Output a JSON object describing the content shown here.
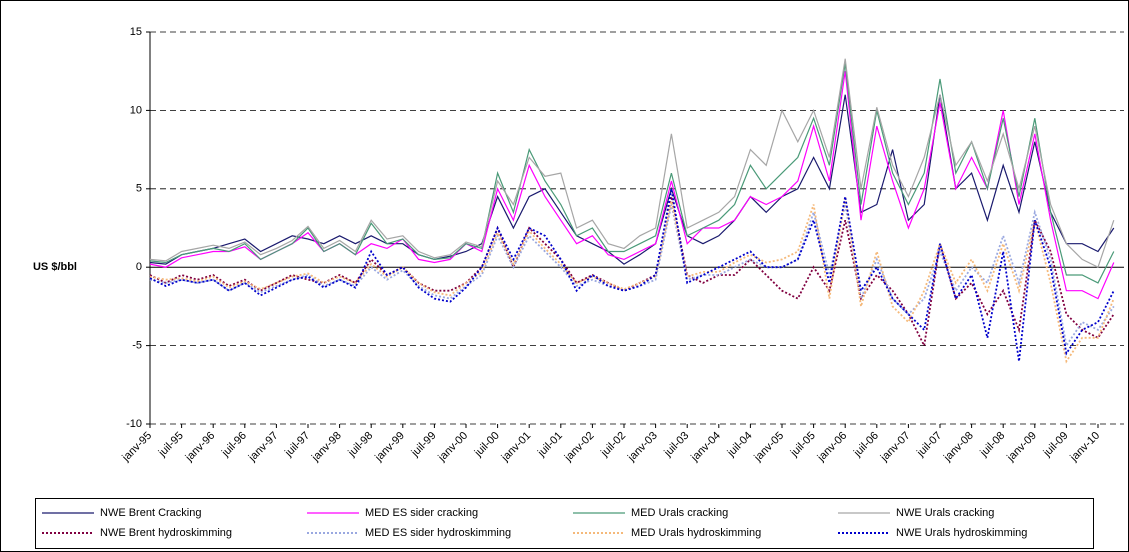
{
  "chart_data": {
    "type": "line",
    "y_label": "US $/bbl",
    "ylim": [
      -10,
      15
    ],
    "yticks": [
      -10,
      -5,
      0,
      5,
      10,
      15
    ],
    "grid": true,
    "legend": "bottom",
    "categories": [
      "janv-95",
      null,
      "juil-95",
      null,
      "janv-96",
      null,
      "juil-96",
      null,
      "janv-97",
      null,
      "juil-97",
      null,
      "janv-98",
      null,
      "juil-98",
      null,
      "janv-99",
      null,
      "juil-99",
      null,
      "janv-00",
      null,
      "juil-00",
      null,
      "janv-01",
      null,
      "juil-01",
      null,
      "janv-02",
      null,
      "juil-02",
      null,
      "janv-03",
      null,
      "juil-03",
      null,
      "janv-04",
      null,
      "juil-04",
      null,
      "janv-05",
      null,
      "juil-05",
      null,
      "janv-06",
      null,
      "juil-06",
      null,
      "janv-07",
      null,
      "juil-07",
      null,
      "janv-08",
      null,
      "juil-08",
      null,
      "janv-09",
      null,
      "juil-09",
      null,
      "janv-10",
      null
    ],
    "series": [
      {
        "name": "NWE Brent Cracking",
        "color": "#1a1a6e",
        "style": "solid",
        "values": [
          0.3,
          0.2,
          0.8,
          1.0,
          1.2,
          1.5,
          1.8,
          1.0,
          1.5,
          2.0,
          1.8,
          1.5,
          2.0,
          1.5,
          2.0,
          1.5,
          1.5,
          0.8,
          0.5,
          0.7,
          1.0,
          1.5,
          4.5,
          2.5,
          4.5,
          5.0,
          3.5,
          2.0,
          1.5,
          1.0,
          0.2,
          0.8,
          1.5,
          5.0,
          2.0,
          1.5,
          2.0,
          3.0,
          4.5,
          3.5,
          4.5,
          5.0,
          7.0,
          5.0,
          11.0,
          3.5,
          4.0,
          7.5,
          3.0,
          4.0,
          11.0,
          5.0,
          6.0,
          3.0,
          6.5,
          3.5,
          8.0,
          3.5,
          1.5,
          1.5,
          1.0,
          2.5
        ]
      },
      {
        "name": "MED ES sider cracking",
        "color": "#ff00ff",
        "style": "solid",
        "values": [
          0.2,
          0.0,
          0.6,
          0.8,
          1.0,
          1.0,
          1.3,
          0.5,
          1.0,
          1.5,
          2.2,
          1.0,
          1.5,
          0.8,
          1.5,
          1.2,
          1.8,
          0.5,
          0.3,
          0.5,
          1.5,
          1.0,
          5.0,
          3.0,
          6.5,
          4.5,
          3.0,
          1.5,
          2.0,
          0.8,
          0.5,
          1.0,
          1.5,
          5.5,
          1.5,
          2.5,
          2.5,
          3.0,
          4.5,
          4.0,
          4.5,
          5.5,
          9.0,
          5.5,
          12.5,
          3.0,
          9.0,
          5.5,
          2.5,
          5.0,
          10.5,
          5.0,
          7.0,
          5.0,
          10.0,
          4.0,
          8.5,
          3.0,
          -1.5,
          -1.5,
          -2.0,
          0.3
        ]
      },
      {
        "name": "MED Urals cracking",
        "color": "#4a9a78",
        "style": "solid",
        "values": [
          0.4,
          0.3,
          0.8,
          1.0,
          1.2,
          1.0,
          1.5,
          0.5,
          1.0,
          1.5,
          2.5,
          1.0,
          1.5,
          0.8,
          2.8,
          1.5,
          1.8,
          0.8,
          0.5,
          0.6,
          1.5,
          1.2,
          6.0,
          3.5,
          7.5,
          5.5,
          4.0,
          2.0,
          2.5,
          1.0,
          1.0,
          1.5,
          2.0,
          6.0,
          2.0,
          2.5,
          3.0,
          4.0,
          6.5,
          5.0,
          6.0,
          7.0,
          9.5,
          6.5,
          13.0,
          4.0,
          10.0,
          6.0,
          4.0,
          6.0,
          12.0,
          6.0,
          8.0,
          5.0,
          9.5,
          4.5,
          9.5,
          3.5,
          -0.5,
          -0.5,
          -1.0,
          1.0
        ]
      },
      {
        "name": "NWE Urals cracking",
        "color": "#a6a6a6",
        "style": "solid",
        "values": [
          0.5,
          0.4,
          1.0,
          1.2,
          1.4,
          1.2,
          1.6,
          0.8,
          1.2,
          1.7,
          2.6,
          1.2,
          1.7,
          1.0,
          3.0,
          1.8,
          2.0,
          1.0,
          0.6,
          0.8,
          1.6,
          1.3,
          5.5,
          4.0,
          7.0,
          5.8,
          6.0,
          2.5,
          3.0,
          1.5,
          1.2,
          2.0,
          2.5,
          8.5,
          2.5,
          3.0,
          3.5,
          4.5,
          7.5,
          6.5,
          10.0,
          8.0,
          10.0,
          7.0,
          13.3,
          5.0,
          10.2,
          6.5,
          4.5,
          7.0,
          11.0,
          6.5,
          8.0,
          5.5,
          8.5,
          5.0,
          9.0,
          4.0,
          1.5,
          0.5,
          0.0,
          3.0
        ]
      },
      {
        "name": "NWE Brent hydroskimming",
        "color": "#800040",
        "style": "dotted",
        "values": [
          -0.5,
          -1.0,
          -0.5,
          -0.8,
          -0.5,
          -1.2,
          -0.8,
          -1.5,
          -1.0,
          -0.5,
          -0.8,
          -1.0,
          -0.5,
          -1.0,
          0.5,
          -0.5,
          0.0,
          -1.0,
          -1.5,
          -1.5,
          -1.0,
          0.0,
          2.5,
          0.0,
          2.5,
          1.5,
          0.5,
          -1.0,
          -0.5,
          -1.0,
          -1.5,
          -1.0,
          -0.5,
          4.5,
          -0.5,
          -1.0,
          -0.5,
          -0.5,
          0.5,
          -0.5,
          -1.5,
          -2.0,
          0.0,
          -1.5,
          3.0,
          -2.0,
          -0.5,
          -1.5,
          -3.0,
          -5.0,
          1.5,
          -2.0,
          -1.0,
          -3.0,
          -1.5,
          -4.0,
          3.0,
          1.0,
          -3.0,
          -4.0,
          -4.5,
          -3.0
        ]
      },
      {
        "name": "MED ES sider hydroskimming",
        "color": "#9aa8e0",
        "style": "dotted",
        "values": [
          -0.8,
          -1.0,
          -0.8,
          -1.0,
          -0.8,
          -1.5,
          -1.0,
          -1.6,
          -1.2,
          -0.8,
          -0.5,
          -1.2,
          -0.8,
          -1.2,
          0.0,
          -0.8,
          -0.2,
          -1.2,
          -1.8,
          -2.0,
          -1.2,
          -0.5,
          2.0,
          0.0,
          2.0,
          1.0,
          0.0,
          -1.2,
          -0.8,
          -1.2,
          -1.5,
          -1.2,
          -0.8,
          4.0,
          -0.8,
          -0.5,
          -0.5,
          0.0,
          0.5,
          0.0,
          0.0,
          0.5,
          3.5,
          -0.5,
          4.0,
          -2.0,
          0.5,
          -2.0,
          -3.0,
          -2.0,
          1.0,
          -1.5,
          0.0,
          -1.0,
          2.0,
          -1.0,
          3.5,
          0.5,
          -5.0,
          -3.5,
          -4.0,
          -2.5
        ]
      },
      {
        "name": "MED Urals hydroskimming",
        "color": "#f5b97a",
        "style": "dotted",
        "values": [
          -0.6,
          -0.8,
          -0.7,
          -0.9,
          -0.6,
          -1.3,
          -0.9,
          -1.4,
          -1.0,
          -0.6,
          -0.4,
          -1.0,
          -0.6,
          -1.0,
          0.2,
          -0.6,
          0.0,
          -1.0,
          -1.6,
          -1.8,
          -1.0,
          -0.3,
          2.2,
          0.2,
          2.3,
          1.2,
          0.2,
          -1.0,
          -0.6,
          -1.0,
          -1.4,
          -1.0,
          -0.6,
          4.2,
          -0.6,
          -0.3,
          -0.3,
          0.3,
          0.8,
          0.3,
          0.5,
          1.0,
          4.0,
          -2.0,
          4.5,
          -2.5,
          1.0,
          -2.5,
          -3.5,
          -1.5,
          1.5,
          -1.0,
          0.5,
          -1.5,
          1.5,
          -1.5,
          3.0,
          -1.0,
          -6.0,
          -4.5,
          -4.5,
          -2.0
        ]
      },
      {
        "name": "NWE Urals hydroskimming",
        "color": "#0000cc",
        "style": "dotted",
        "values": [
          -0.7,
          -1.2,
          -0.8,
          -1.0,
          -0.8,
          -1.5,
          -1.0,
          -1.8,
          -1.3,
          -0.8,
          -0.6,
          -1.3,
          -0.8,
          -1.3,
          1.0,
          -0.5,
          0.0,
          -1.3,
          -2.0,
          -2.2,
          -1.3,
          0.0,
          2.5,
          0.5,
          2.5,
          2.0,
          0.5,
          -1.5,
          -0.5,
          -1.2,
          -1.5,
          -1.2,
          -0.5,
          5.0,
          -1.0,
          -0.5,
          0.0,
          0.5,
          1.0,
          0.0,
          0.0,
          0.5,
          3.0,
          -1.0,
          4.5,
          -1.5,
          0.0,
          -2.0,
          -3.0,
          -4.0,
          1.5,
          -2.0,
          -0.5,
          -4.5,
          1.0,
          -6.0,
          3.0,
          0.0,
          -5.5,
          -4.0,
          -3.5,
          -1.5
        ]
      }
    ]
  }
}
